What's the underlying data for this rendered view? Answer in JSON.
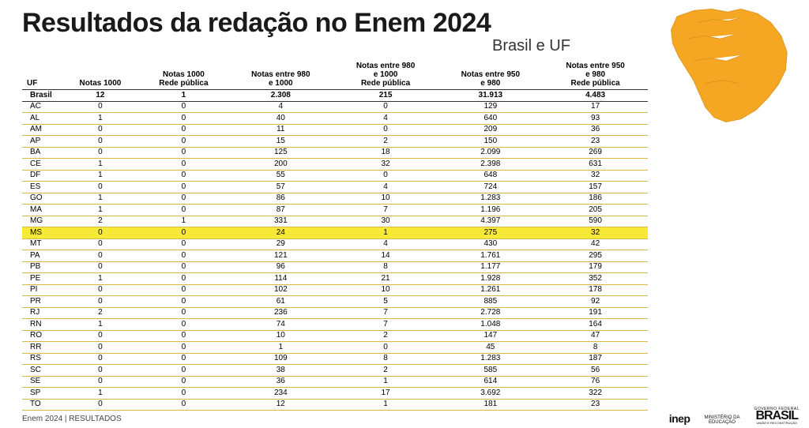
{
  "header": {
    "title": "Resultados da redação no Enem 2024",
    "subtitle": "Brasil e UF"
  },
  "map": {
    "fill": "#f5a623",
    "stroke": "#d88f1a"
  },
  "table": {
    "columns": [
      "UF",
      "Notas 1000",
      "Notas 1000 Rede pública",
      "Notas entre 980 e 1000",
      "Notas entre 980 e 1000 Rede pública",
      "Notas entre 950 e 980",
      "Notas entre 950 e 980 Rede pública"
    ],
    "summary": [
      "Brasil",
      "12",
      "1",
      "2.308",
      "215",
      "31.913",
      "4.483"
    ],
    "highlight_uf": "MS",
    "rows": [
      [
        "AC",
        "0",
        "0",
        "4",
        "0",
        "129",
        "17"
      ],
      [
        "AL",
        "1",
        "0",
        "40",
        "4",
        "640",
        "93"
      ],
      [
        "AM",
        "0",
        "0",
        "11",
        "0",
        "209",
        "36"
      ],
      [
        "AP",
        "0",
        "0",
        "15",
        "2",
        "150",
        "23"
      ],
      [
        "BA",
        "0",
        "0",
        "125",
        "18",
        "2.099",
        "269"
      ],
      [
        "CE",
        "1",
        "0",
        "200",
        "32",
        "2.398",
        "631"
      ],
      [
        "DF",
        "1",
        "0",
        "55",
        "0",
        "648",
        "32"
      ],
      [
        "ES",
        "0",
        "0",
        "57",
        "4",
        "724",
        "157"
      ],
      [
        "GO",
        "1",
        "0",
        "86",
        "10",
        "1.283",
        "186"
      ],
      [
        "MA",
        "1",
        "0",
        "87",
        "7",
        "1.196",
        "205"
      ],
      [
        "MG",
        "2",
        "1",
        "331",
        "30",
        "4.397",
        "590"
      ],
      [
        "MS",
        "0",
        "0",
        "24",
        "1",
        "275",
        "32"
      ],
      [
        "MT",
        "0",
        "0",
        "29",
        "4",
        "430",
        "42"
      ],
      [
        "PA",
        "0",
        "0",
        "121",
        "14",
        "1.761",
        "295"
      ],
      [
        "PB",
        "0",
        "0",
        "96",
        "8",
        "1.177",
        "179"
      ],
      [
        "PE",
        "1",
        "0",
        "114",
        "21",
        "1.928",
        "352"
      ],
      [
        "PI",
        "0",
        "0",
        "102",
        "10",
        "1.261",
        "178"
      ],
      [
        "PR",
        "0",
        "0",
        "61",
        "5",
        "885",
        "92"
      ],
      [
        "RJ",
        "2",
        "0",
        "236",
        "7",
        "2.728",
        "191"
      ],
      [
        "RN",
        "1",
        "0",
        "74",
        "7",
        "1.048",
        "164"
      ],
      [
        "RO",
        "0",
        "0",
        "10",
        "2",
        "147",
        "47"
      ],
      [
        "RR",
        "0",
        "0",
        "1",
        "0",
        "45",
        "8"
      ],
      [
        "RS",
        "0",
        "0",
        "109",
        "8",
        "1.283",
        "187"
      ],
      [
        "SC",
        "0",
        "0",
        "38",
        "2",
        "585",
        "56"
      ],
      [
        "SE",
        "0",
        "0",
        "36",
        "1",
        "614",
        "76"
      ],
      [
        "SP",
        "1",
        "0",
        "234",
        "17",
        "3.692",
        "322"
      ],
      [
        "TO",
        "0",
        "0",
        "12",
        "1",
        "181",
        "23"
      ]
    ]
  },
  "footer": {
    "text": "Enem 2024 | RESULTADOS"
  },
  "logos": {
    "inep": "inep",
    "ministry_line1": "MINISTÉRIO DA",
    "ministry_line2": "EDUCAÇÃO",
    "gov_line1": "GOVERNO FEDERAL",
    "gov_line2": "BRASIL",
    "gov_line3": "UNIÃO E RECONSTRUÇÃO"
  }
}
